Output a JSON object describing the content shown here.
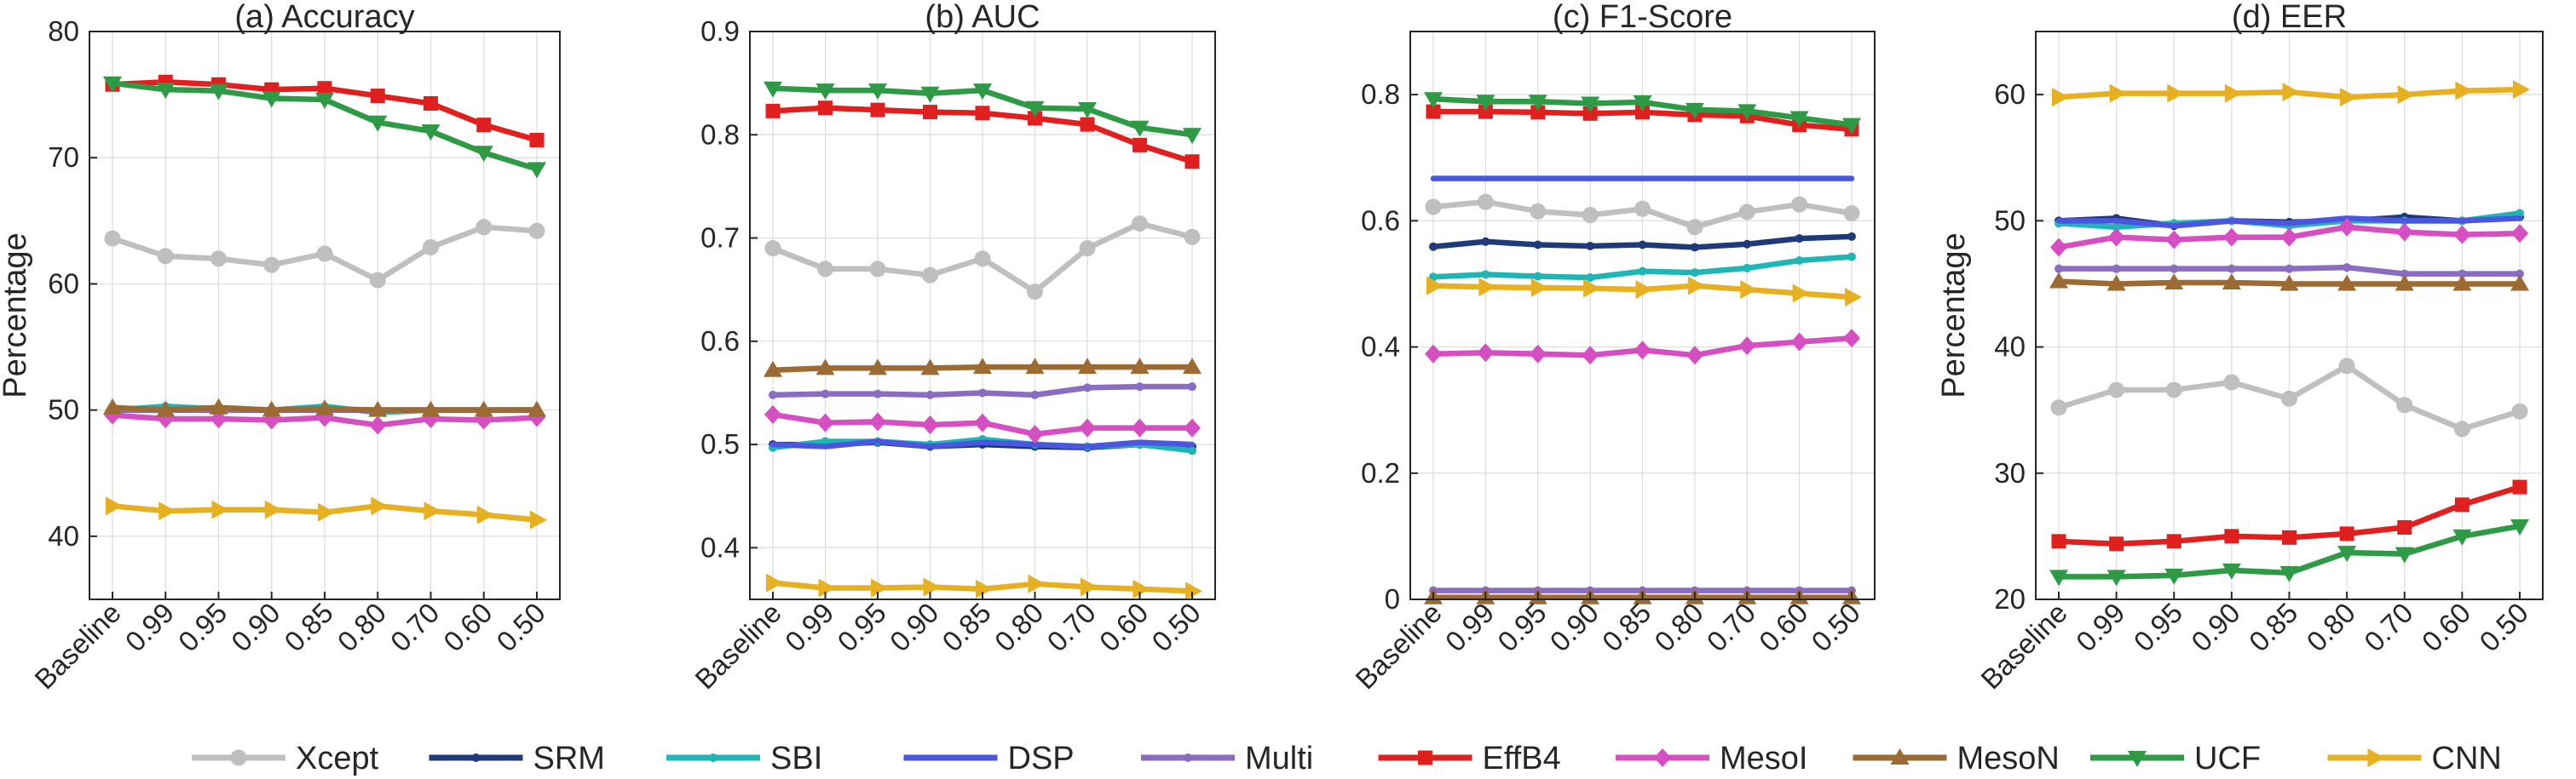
{
  "figure": {
    "ylabel": "Percentage",
    "categories": [
      "Baseline",
      "0.99",
      "0.95",
      "0.90",
      "0.85",
      "0.80",
      "0.70",
      "0.60",
      "0.50"
    ]
  },
  "legend": [
    {
      "name": "Xcept",
      "color": "#bfbfbf",
      "marker": "circle"
    },
    {
      "name": "SRM",
      "color": "#1f3a7a",
      "marker": "dot"
    },
    {
      "name": "SBI",
      "color": "#1fb5b5",
      "marker": "dot"
    },
    {
      "name": "DSP",
      "color": "#4a56e0",
      "marker": "none"
    },
    {
      "name": "Multi",
      "color": "#8a6cc0",
      "marker": "dot"
    },
    {
      "name": "EffB4",
      "color": "#e0201e",
      "marker": "square"
    },
    {
      "name": "MesoI",
      "color": "#d54fc2",
      "marker": "diamond"
    },
    {
      "name": "MesoN",
      "color": "#9c6b34",
      "marker": "triangle-up"
    },
    {
      "name": "UCF",
      "color": "#2e9a45",
      "marker": "triangle-down"
    },
    {
      "name": "CNN",
      "color": "#e6b021",
      "marker": "triangle-right"
    }
  ],
  "chart_data": [
    {
      "type": "line",
      "title": "(a) Accuracy",
      "ylabel": "Percentage",
      "categories": [
        "Baseline",
        "0.99",
        "0.95",
        "0.90",
        "0.85",
        "0.80",
        "0.70",
        "0.60",
        "0.50"
      ],
      "ylim": [
        35,
        80
      ],
      "yticks": [
        40,
        50,
        60,
        70,
        80
      ],
      "ytick_labels": [
        "40",
        "50",
        "60",
        "70",
        "80"
      ],
      "grid": true,
      "series": [
        {
          "name": "Xcept",
          "values": [
            63.6,
            62.2,
            62.0,
            61.5,
            62.4,
            60.3,
            62.9,
            64.5,
            64.2
          ]
        },
        {
          "name": "SRM",
          "values": [
            50.0,
            50.0,
            50.0,
            50.0,
            50.0,
            50.0,
            50.0,
            50.0,
            50.0
          ]
        },
        {
          "name": "SBI",
          "values": [
            50.0,
            50.3,
            50.1,
            50.0,
            50.3,
            49.8,
            50.0,
            50.0,
            50.0
          ]
        },
        {
          "name": "DSP",
          "values": [
            50.0,
            50.0,
            50.0,
            50.0,
            50.0,
            50.0,
            50.0,
            50.0,
            50.0
          ]
        },
        {
          "name": "Multi",
          "values": [
            50.0,
            50.0,
            50.0,
            50.0,
            50.0,
            50.0,
            50.0,
            50.0,
            50.0
          ]
        },
        {
          "name": "EffB4",
          "values": [
            75.8,
            76.0,
            75.8,
            75.4,
            75.5,
            74.9,
            74.3,
            72.6,
            71.4
          ]
        },
        {
          "name": "MesoI",
          "values": [
            49.6,
            49.3,
            49.3,
            49.2,
            49.4,
            48.8,
            49.3,
            49.2,
            49.4
          ]
        },
        {
          "name": "MesoN",
          "values": [
            50.2,
            50.0,
            50.2,
            50.0,
            50.1,
            50.0,
            50.0,
            50.0,
            50.0
          ]
        },
        {
          "name": "UCF",
          "values": [
            75.9,
            75.4,
            75.3,
            74.7,
            74.6,
            72.8,
            72.1,
            70.4,
            69.1
          ]
        },
        {
          "name": "CNN",
          "values": [
            42.4,
            42.0,
            42.1,
            42.1,
            41.9,
            42.4,
            42.0,
            41.7,
            41.3
          ]
        }
      ]
    },
    {
      "type": "line",
      "title": "(b) AUC",
      "ylabel": "",
      "categories": [
        "Baseline",
        "0.99",
        "0.95",
        "0.90",
        "0.85",
        "0.80",
        "0.70",
        "0.60",
        "0.50"
      ],
      "ylim": [
        0.35,
        0.9
      ],
      "yticks": [
        0.4,
        0.5,
        0.6,
        0.7,
        0.8,
        0.9
      ],
      "ytick_labels": [
        "0.4",
        "0.5",
        "0.6",
        "0.7",
        "0.8",
        "0.9"
      ],
      "grid": true,
      "series": [
        {
          "name": "Xcept",
          "values": [
            0.69,
            0.67,
            0.67,
            0.664,
            0.68,
            0.648,
            0.69,
            0.714,
            0.701
          ]
        },
        {
          "name": "SRM",
          "values": [
            0.5,
            0.5,
            0.502,
            0.498,
            0.5,
            0.498,
            0.497,
            0.5,
            0.498
          ]
        },
        {
          "name": "SBI",
          "values": [
            0.497,
            0.503,
            0.503,
            0.5,
            0.505,
            0.5,
            0.498,
            0.5,
            0.494
          ]
        },
        {
          "name": "DSP",
          "values": [
            0.5,
            0.498,
            0.503,
            0.498,
            0.502,
            0.5,
            0.498,
            0.502,
            0.5
          ]
        },
        {
          "name": "Multi",
          "values": [
            0.548,
            0.549,
            0.549,
            0.548,
            0.55,
            0.548,
            0.555,
            0.556,
            0.556
          ]
        },
        {
          "name": "EffB4",
          "values": [
            0.823,
            0.826,
            0.824,
            0.822,
            0.821,
            0.816,
            0.81,
            0.79,
            0.774
          ]
        },
        {
          "name": "MesoI",
          "values": [
            0.529,
            0.521,
            0.522,
            0.519,
            0.521,
            0.51,
            0.516,
            0.516,
            0.516
          ]
        },
        {
          "name": "MesoN",
          "values": [
            0.572,
            0.574,
            0.574,
            0.574,
            0.575,
            0.575,
            0.575,
            0.575,
            0.575
          ]
        },
        {
          "name": "UCF",
          "values": [
            0.845,
            0.843,
            0.843,
            0.84,
            0.843,
            0.826,
            0.825,
            0.807,
            0.8
          ]
        },
        {
          "name": "CNN",
          "values": [
            0.366,
            0.361,
            0.361,
            0.362,
            0.36,
            0.365,
            0.362,
            0.36,
            0.358
          ]
        }
      ]
    },
    {
      "type": "line",
      "title": "(c) F1-Score",
      "ylabel": "",
      "categories": [
        "Baseline",
        "0.99",
        "0.95",
        "0.90",
        "0.85",
        "0.80",
        "0.70",
        "0.60",
        "0.50"
      ],
      "ylim": [
        0,
        0.9
      ],
      "yticks": [
        0,
        0.2,
        0.4,
        0.6,
        0.8
      ],
      "ytick_labels": [
        "0",
        "0.2",
        "0.4",
        "0.6",
        "0.8"
      ],
      "grid": true,
      "series": [
        {
          "name": "Xcept",
          "values": [
            0.622,
            0.63,
            0.615,
            0.609,
            0.619,
            0.59,
            0.614,
            0.626,
            0.612
          ]
        },
        {
          "name": "SRM",
          "values": [
            0.559,
            0.567,
            0.562,
            0.56,
            0.562,
            0.558,
            0.563,
            0.572,
            0.575
          ]
        },
        {
          "name": "SBI",
          "values": [
            0.511,
            0.515,
            0.512,
            0.51,
            0.52,
            0.518,
            0.525,
            0.537,
            0.543
          ]
        },
        {
          "name": "DSP",
          "values": [
            0.667,
            0.667,
            0.667,
            0.667,
            0.667,
            0.667,
            0.667,
            0.667,
            0.667
          ]
        },
        {
          "name": "Multi",
          "values": [
            0.014,
            0.014,
            0.014,
            0.014,
            0.014,
            0.014,
            0.014,
            0.014,
            0.014
          ]
        },
        {
          "name": "EffB4",
          "values": [
            0.773,
            0.773,
            0.772,
            0.77,
            0.772,
            0.768,
            0.766,
            0.752,
            0.745
          ]
        },
        {
          "name": "MesoI",
          "values": [
            0.389,
            0.391,
            0.389,
            0.387,
            0.395,
            0.387,
            0.402,
            0.408,
            0.414
          ]
        },
        {
          "name": "MesoN",
          "values": [
            0.003,
            0.003,
            0.003,
            0.003,
            0.003,
            0.003,
            0.003,
            0.003,
            0.003
          ]
        },
        {
          "name": "UCF",
          "values": [
            0.793,
            0.789,
            0.789,
            0.786,
            0.788,
            0.776,
            0.774,
            0.763,
            0.752
          ]
        },
        {
          "name": "CNN",
          "values": [
            0.497,
            0.495,
            0.494,
            0.493,
            0.491,
            0.497,
            0.491,
            0.485,
            0.479
          ]
        }
      ]
    },
    {
      "type": "line",
      "title": "(d) EER",
      "ylabel": "Percentage",
      "categories": [
        "Baseline",
        "0.99",
        "0.95",
        "0.90",
        "0.85",
        "0.80",
        "0.70",
        "0.60",
        "0.50"
      ],
      "ylim": [
        20,
        65
      ],
      "yticks": [
        20,
        30,
        40,
        50,
        60
      ],
      "ytick_labels": [
        "20",
        "30",
        "40",
        "50",
        "60"
      ],
      "grid": true,
      "series": [
        {
          "name": "Xcept",
          "values": [
            35.2,
            36.6,
            36.6,
            37.2,
            35.9,
            38.5,
            35.4,
            33.5,
            34.9
          ]
        },
        {
          "name": "SRM",
          "values": [
            50.0,
            50.2,
            49.6,
            50.0,
            49.9,
            50.0,
            50.3,
            50.0,
            50.3
          ]
        },
        {
          "name": "SBI",
          "values": [
            49.8,
            49.5,
            49.8,
            50.0,
            49.6,
            50.0,
            50.0,
            50.0,
            50.6
          ]
        },
        {
          "name": "DSP",
          "values": [
            50.0,
            50.0,
            49.6,
            50.0,
            49.8,
            50.2,
            50.0,
            50.0,
            50.2
          ]
        },
        {
          "name": "Multi",
          "values": [
            46.2,
            46.2,
            46.2,
            46.2,
            46.2,
            46.3,
            45.8,
            45.8,
            45.8
          ]
        },
        {
          "name": "EffB4",
          "values": [
            24.6,
            24.4,
            24.6,
            25.0,
            24.9,
            25.2,
            25.7,
            27.5,
            28.9
          ]
        },
        {
          "name": "MesoI",
          "values": [
            47.9,
            48.7,
            48.5,
            48.7,
            48.7,
            49.5,
            49.1,
            48.9,
            49.0
          ]
        },
        {
          "name": "MesoN",
          "values": [
            45.2,
            45.0,
            45.1,
            45.1,
            45.0,
            45.0,
            45.0,
            45.0,
            45.0
          ]
        },
        {
          "name": "UCF",
          "values": [
            21.8,
            21.8,
            21.9,
            22.3,
            22.1,
            23.7,
            23.6,
            25.0,
            25.8
          ]
        },
        {
          "name": "CNN",
          "values": [
            59.8,
            60.1,
            60.1,
            60.1,
            60.2,
            59.8,
            60.0,
            60.3,
            60.4
          ]
        }
      ]
    }
  ]
}
